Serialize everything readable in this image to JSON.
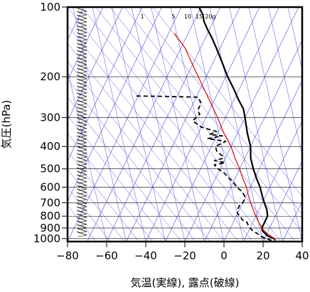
{
  "chart_data": {
    "type": "line",
    "title": "",
    "xlabel": "気温(実線), 露点(破線)",
    "ylabel": "気圧(hPa)",
    "xlim": [
      -80,
      40
    ],
    "ylim": [
      1030,
      100
    ],
    "y_scale": "log",
    "x_ticks": [
      "−80",
      "−60",
      "−40",
      "−20",
      "0",
      "20",
      "40"
    ],
    "y_ticks": [
      {
        "p": 100,
        "label": "100"
      },
      {
        "p": 200,
        "label": "200"
      },
      {
        "p": 300,
        "label": "300"
      },
      {
        "p": 400,
        "label": "400"
      },
      {
        "p": 500,
        "label": "500"
      },
      {
        "p": 600,
        "label": "600"
      },
      {
        "p": 700,
        "label": "700"
      },
      {
        "p": 800,
        "label": "800"
      },
      {
        "p": 900,
        "label": "900"
      },
      {
        "p": 1000,
        "label": "1000"
      }
    ],
    "mixing_ratio_labels": [
      "1",
      "5",
      "10",
      "15",
      "20g"
    ],
    "series": [
      {
        "style": "solid",
        "color": "#000000",
        "points": [
          [
            1020,
            26
          ],
          [
            1000,
            25
          ],
          [
            975,
            21
          ],
          [
            950,
            19
          ],
          [
            925,
            17
          ],
          [
            900,
            16
          ],
          [
            850,
            16
          ],
          [
            800,
            16
          ],
          [
            750,
            14
          ],
          [
            700,
            11
          ],
          [
            650,
            8
          ],
          [
            600,
            5
          ],
          [
            550,
            1
          ],
          [
            500,
            -3
          ],
          [
            450,
            -7
          ],
          [
            400,
            -10
          ],
          [
            350,
            -15
          ],
          [
            300,
            -20
          ],
          [
            275,
            -23
          ],
          [
            250,
            -28
          ],
          [
            225,
            -33
          ],
          [
            200,
            -39
          ],
          [
            175,
            -45
          ],
          [
            150,
            -52
          ],
          [
            135,
            -57
          ],
          [
            125,
            -61
          ],
          [
            115,
            -65
          ],
          [
            108,
            -67
          ],
          [
            100,
            -71
          ]
        ]
      },
      {
        "style": "dashed",
        "color": "#000000",
        "points": [
          [
            1020,
            24
          ],
          [
            1000,
            21
          ],
          [
            975,
            17
          ],
          [
            950,
            15
          ],
          [
            925,
            12
          ],
          [
            900,
            10
          ],
          [
            870,
            8
          ],
          [
            850,
            7
          ],
          [
            830,
            4
          ],
          [
            800,
            2
          ],
          [
            780,
            0
          ],
          [
            750,
            -1
          ],
          [
            720,
            -1
          ],
          [
            700,
            0
          ],
          [
            680,
            0
          ],
          [
            650,
            -1
          ],
          [
            620,
            -4
          ],
          [
            600,
            -7
          ],
          [
            570,
            -10
          ],
          [
            550,
            -13
          ],
          [
            520,
            -17
          ],
          [
            500,
            -21
          ],
          [
            480,
            -24
          ],
          [
            470,
            -19
          ],
          [
            460,
            -25
          ],
          [
            450,
            -21
          ],
          [
            440,
            -22
          ],
          [
            420,
            -26
          ],
          [
            400,
            -28
          ],
          [
            380,
            -24
          ],
          [
            370,
            -34
          ],
          [
            360,
            -27
          ],
          [
            355,
            -34
          ],
          [
            345,
            -31
          ],
          [
            330,
            -40
          ],
          [
            310,
            -46
          ],
          [
            290,
            -44
          ],
          [
            280,
            -46
          ],
          [
            260,
            -46
          ],
          [
            245,
            -49
          ],
          [
            243,
            -68
          ],
          [
            242,
            -82
          ]
        ]
      },
      {
        "style": "solid",
        "color": "#e60000",
        "points": [
          [
            1020,
            26
          ],
          [
            1000,
            25
          ],
          [
            950,
            20
          ],
          [
            900,
            16
          ],
          [
            850,
            13
          ],
          [
            800,
            10
          ],
          [
            750,
            7
          ],
          [
            700,
            4
          ],
          [
            650,
            1
          ],
          [
            600,
            -2
          ],
          [
            550,
            -6
          ],
          [
            500,
            -10
          ],
          [
            450,
            -15
          ],
          [
            400,
            -20
          ],
          [
            350,
            -27
          ],
          [
            300,
            -34
          ],
          [
            250,
            -43
          ],
          [
            200,
            -54
          ],
          [
            170,
            -62
          ],
          [
            150,
            -68
          ],
          [
            130,
            -77
          ]
        ]
      }
    ],
    "wind_barbs": "left side"
  }
}
